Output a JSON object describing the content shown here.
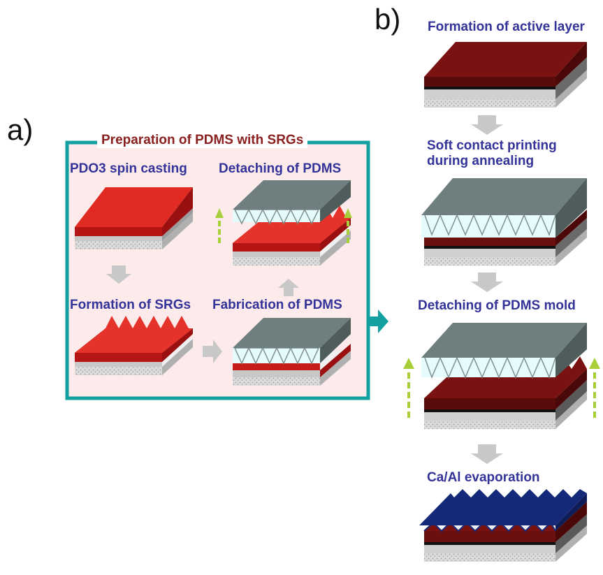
{
  "panels": {
    "a": {
      "letter": "a)",
      "box_title": "Preparation of PDMS with SRGs",
      "steps": [
        "PDO3 spin casting",
        "Detaching of PDMS",
        "Formation of SRGs",
        "Fabrication of PDMS"
      ]
    },
    "b": {
      "letter": "b)",
      "steps": [
        "Formation of active layer",
        "Soft contact printing",
        "during annealing",
        "Detaching of PDMS mold",
        "Ca/Al evaporation"
      ]
    }
  },
  "colors": {
    "box_border": "#12a0a0",
    "box_fill": "#fdeaea",
    "red_film": "#d8201c",
    "dark_red": "#7a1212",
    "pdms": "#6f7f7f",
    "pdms_light": "#e6fbfb",
    "metal": "#142a78",
    "arrow_green": "#a8cf3a",
    "arrow_gray": "#c8c8c8"
  }
}
